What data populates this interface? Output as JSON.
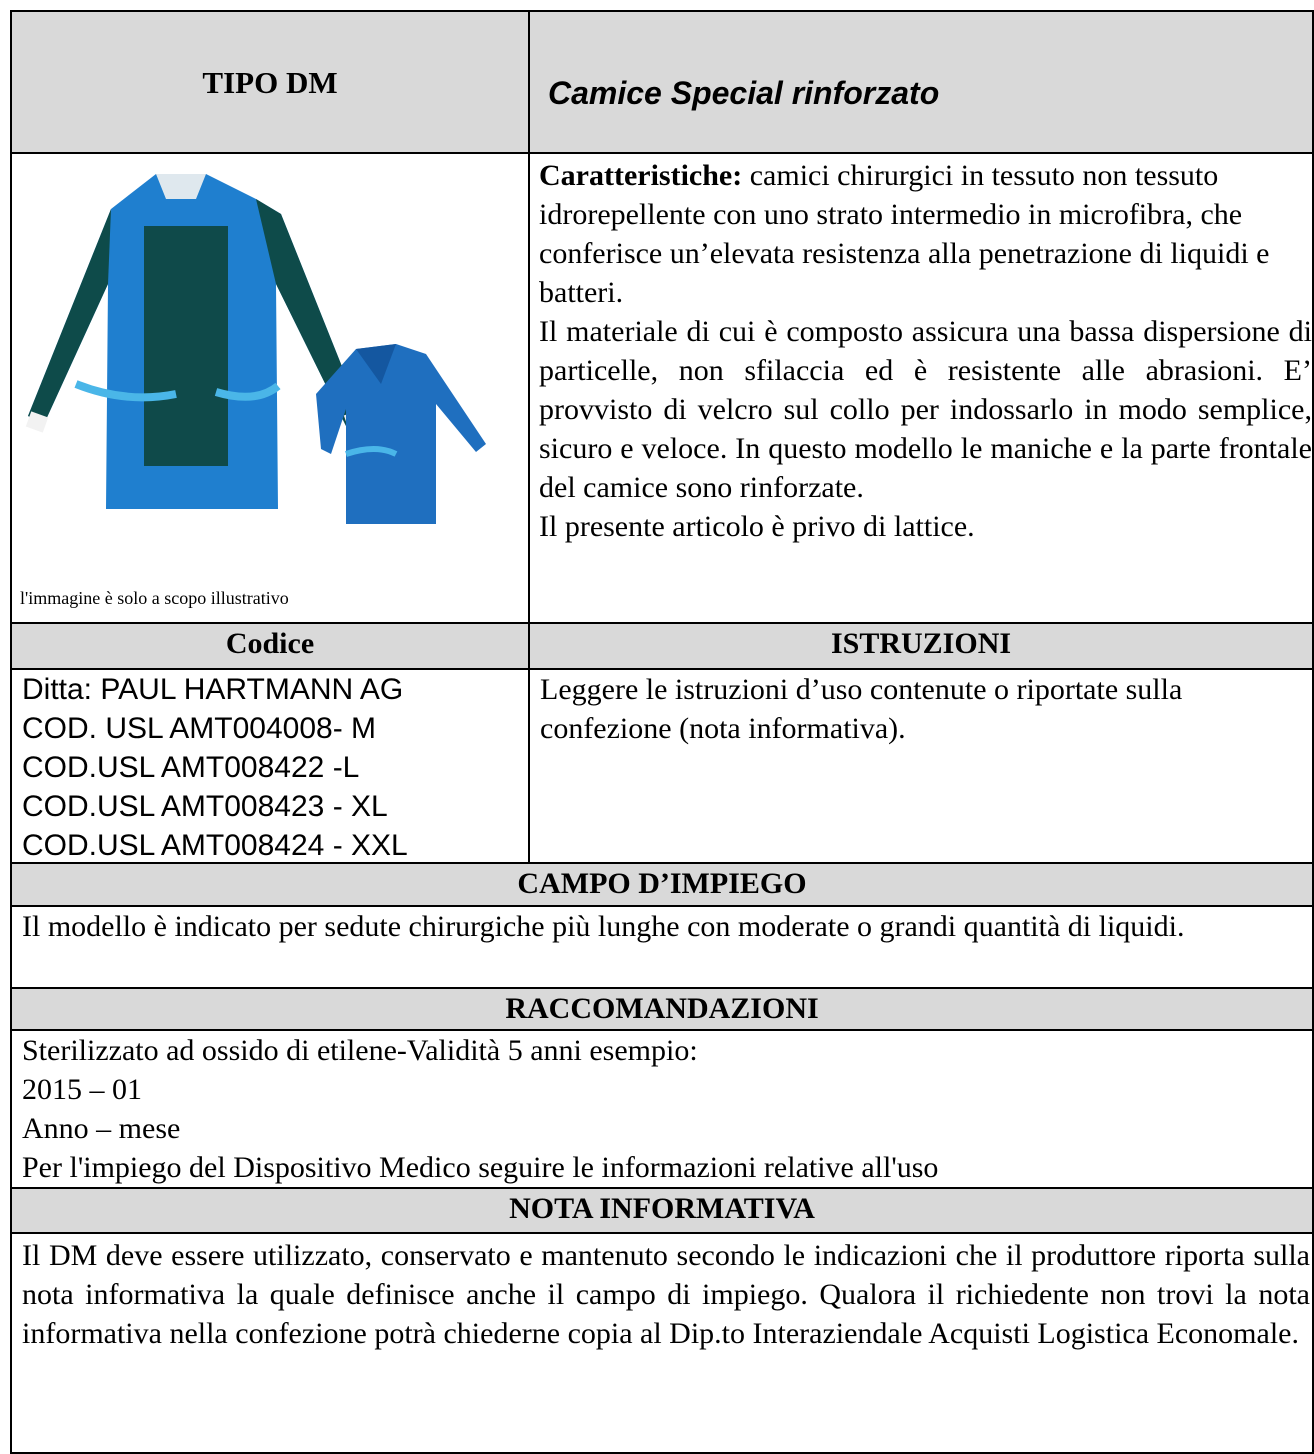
{
  "header": {
    "label": "TIPO DM",
    "title": "Camice Special rinforzato"
  },
  "image_caption": "l'immagine è solo a scopo illustrativo",
  "caratteristiche": {
    "label": "Caratteristiche:",
    "text": "camici chirurgici in tessuto non tessuto idrorepellente con uno strato intermedio in microfibra, che conferisce un’elevata resistenza alla penetrazione di liquidi e batteri.",
    "paragraph_2": "Il materiale di cui è composto assicura una bassa dispersione di particelle, non sfilaccia ed è resistente alle abrasioni. E’ provvisto di velcro sul collo per indossarlo in modo semplice, sicuro e veloce. In questo modello le maniche e la parte frontale del camice sono rinforzate.",
    "paragraph_3": "Il presente articolo è privo di lattice."
  },
  "codice": {
    "heading": "Codice",
    "lines": [
      "Ditta: PAUL HARTMANN AG",
      "COD. USL AMT004008- M",
      "COD.USL AMT008422 -L",
      "COD.USL AMT008423 - XL",
      "COD.USL AMT008424 - XXL"
    ]
  },
  "istruzioni": {
    "heading": "ISTRUZIONI",
    "text": "Leggere le istruzioni d’uso contenute o riportate sulla confezione (nota informativa)."
  },
  "campo_impiego": {
    "heading": "CAMPO D’IMPIEGO",
    "text": "Il modello è indicato per sedute chirurgiche più lunghe con moderate o grandi quantità di liquidi."
  },
  "raccomandazioni": {
    "heading": "RACCOMANDAZIONI",
    "lines": [
      "Sterilizzato ad ossido di etilene-Validità 5 anni esempio:",
      "2015 – 01",
      "Anno – mese",
      "Per l'impiego del Dispositivo Medico seguire le informazioni relative all'uso"
    ]
  },
  "nota_informativa": {
    "heading": "NOTA INFORMATIVA",
    "text": "Il DM deve essere utilizzato, conservato e mantenuto secondo le indicazioni che il produttore riporta sulla nota informativa la quale definisce anche il campo di impiego. Qualora il richiedente non trovi la nota informativa nella confezione potrà chiederne copia al Dip.to Interaziendale Acquisti Logistica Economale."
  }
}
